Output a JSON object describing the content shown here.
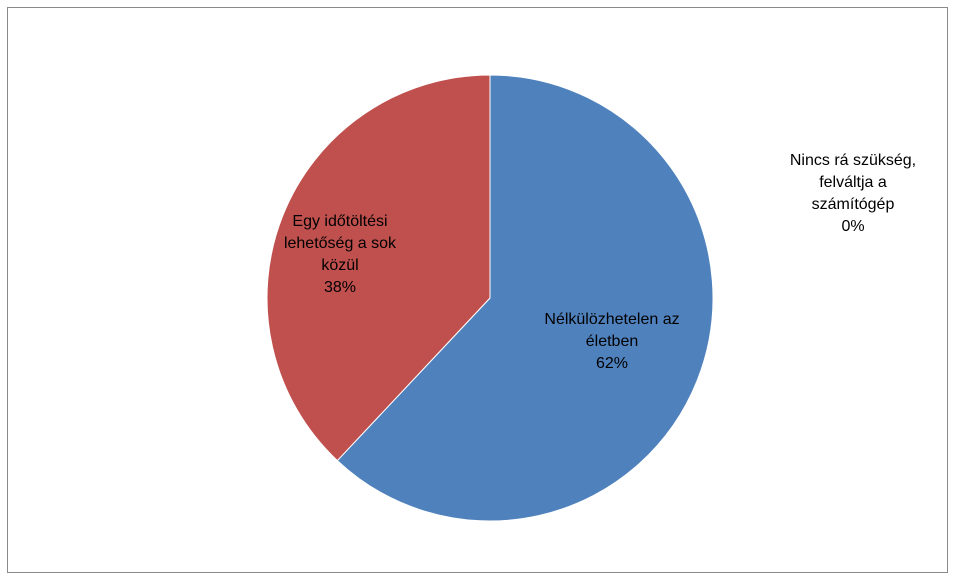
{
  "chart_data": {
    "type": "pie",
    "title": "",
    "slices": [
      {
        "label_lines": [
          "Nélkülözhetelen az",
          "életben"
        ],
        "percent_label": "62%",
        "value": 62,
        "color": "#4F81BD"
      },
      {
        "label_lines": [
          "Egy időtöltési",
          "lehetőség a sok",
          "közül"
        ],
        "percent_label": "38%",
        "value": 38,
        "color": "#C0504D"
      },
      {
        "label_lines": [
          "Nincs rá szükség,",
          "felváltja a",
          "számítógép"
        ],
        "percent_label": "0%",
        "value": 0,
        "color": "#9BBB59"
      }
    ],
    "legend": "none",
    "data_labels": "category-and-percent"
  }
}
